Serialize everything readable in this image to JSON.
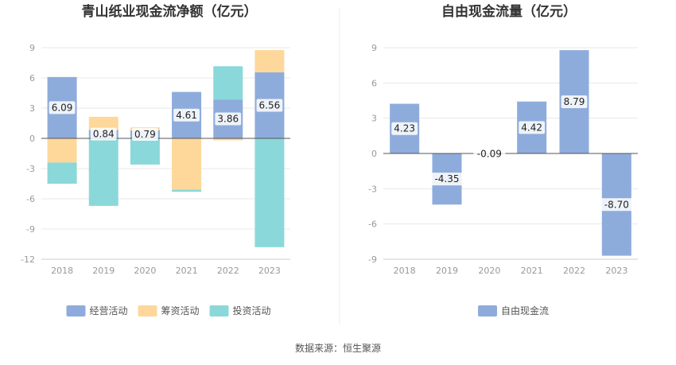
{
  "source": "数据来源：恒生聚源",
  "colors": {
    "operating": "#8eacdb",
    "financing": "#fdd89a",
    "investing": "#8ad8da",
    "fcf": "#8eacdb",
    "grid": "#e8e8e8",
    "axis": "#555555"
  },
  "chart_data": [
    {
      "type": "bar",
      "stacked": true,
      "title": "青山纸业现金流净额（亿元）",
      "categories": [
        "2018",
        "2019",
        "2020",
        "2021",
        "2022",
        "2023"
      ],
      "ylim": [
        -12,
        9
      ],
      "yticks": [
        9,
        6,
        3,
        0,
        -3,
        -6,
        -9,
        -12
      ],
      "grid": true,
      "legend_position": "bottom",
      "series": [
        {
          "name": "经营活动",
          "key": "operating",
          "values": [
            6.09,
            0.84,
            0.79,
            4.61,
            3.86,
            6.56
          ],
          "show_labels": true
        },
        {
          "name": "筹资活动",
          "key": "financing",
          "values": [
            -2.4,
            1.3,
            0.3,
            -5.1,
            -0.2,
            2.2
          ],
          "show_labels": false
        },
        {
          "name": "投资活动",
          "key": "investing",
          "values": [
            -2.1,
            -6.7,
            -2.6,
            -0.2,
            3.3,
            -10.8
          ],
          "show_labels": false
        }
      ]
    },
    {
      "type": "bar",
      "title": "自由现金流量（亿元）",
      "categories": [
        "2018",
        "2019",
        "2020",
        "2021",
        "2022",
        "2023"
      ],
      "ylim": [
        -9,
        9
      ],
      "yticks": [
        9,
        6,
        3,
        0,
        -3,
        -6,
        -9
      ],
      "grid": true,
      "legend_position": "bottom",
      "series": [
        {
          "name": "自由现金流",
          "key": "fcf",
          "values": [
            4.23,
            -4.35,
            -0.09,
            4.42,
            8.79,
            -8.7
          ],
          "labels": [
            "4.23",
            "-4.35",
            "-0.09",
            "4.42",
            "8.79",
            "-8.70"
          ],
          "show_labels": true
        }
      ]
    }
  ]
}
